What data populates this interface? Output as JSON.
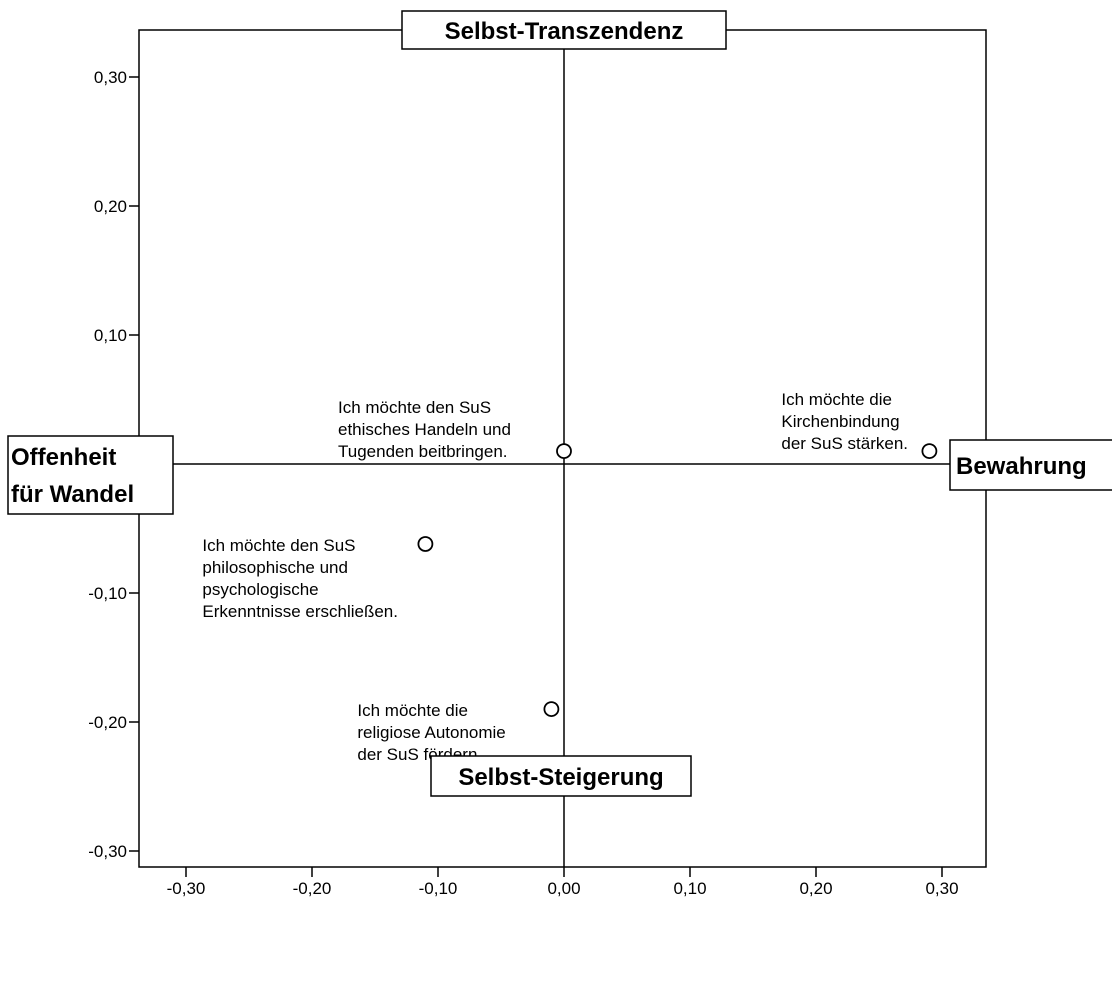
{
  "chart_data": {
    "type": "scatter",
    "title": "",
    "xlim": [
      -0.335,
      0.335
    ],
    "ylim": [
      -0.335,
      0.335
    ],
    "x_ticks": [
      {
        "value": -0.3,
        "label": "-0,30"
      },
      {
        "value": -0.2,
        "label": "-0,20"
      },
      {
        "value": -0.1,
        "label": "-0,10"
      },
      {
        "value": 0.0,
        "label": "0,00"
      },
      {
        "value": 0.1,
        "label": "0,10"
      },
      {
        "value": 0.2,
        "label": "0,20"
      },
      {
        "value": 0.3,
        "label": "0,30"
      }
    ],
    "y_ticks": [
      {
        "value": 0.3,
        "label": "0,30"
      },
      {
        "value": 0.2,
        "label": "0,20"
      },
      {
        "value": 0.1,
        "label": "0,10"
      },
      {
        "value": -0.1,
        "label": "-0,10"
      },
      {
        "value": -0.2,
        "label": "-0,20"
      },
      {
        "value": -0.3,
        "label": "-0,30"
      }
    ],
    "grid": false,
    "reference_lines": {
      "x": 0,
      "y": 0
    },
    "dimension_labels": {
      "top": "Selbst-Transzendenz",
      "bottom": "Selbst-Steigerung",
      "left": [
        "Offenheit",
        "für Wandel"
      ],
      "right": "Bewahrung"
    },
    "points": [
      {
        "x": 0.0,
        "y": 0.01,
        "label": [
          "Ich möchte den SuS",
          "ethisches Handeln und",
          "Tugenden beitbringen."
        ]
      },
      {
        "x": 0.29,
        "y": 0.01,
        "label": [
          "Ich möchte die",
          "Kirchenbindung",
          "der SuS stärken."
        ]
      },
      {
        "x": -0.11,
        "y": -0.062,
        "label": [
          "Ich möchte den SuS",
          "philosophische und",
          "psychologische",
          "Erkenntnisse erschließen."
        ]
      },
      {
        "x": -0.01,
        "y": -0.19,
        "label": [
          "Ich möchte die",
          "religiose Autonomie",
          "der SuS fördern."
        ]
      }
    ]
  }
}
